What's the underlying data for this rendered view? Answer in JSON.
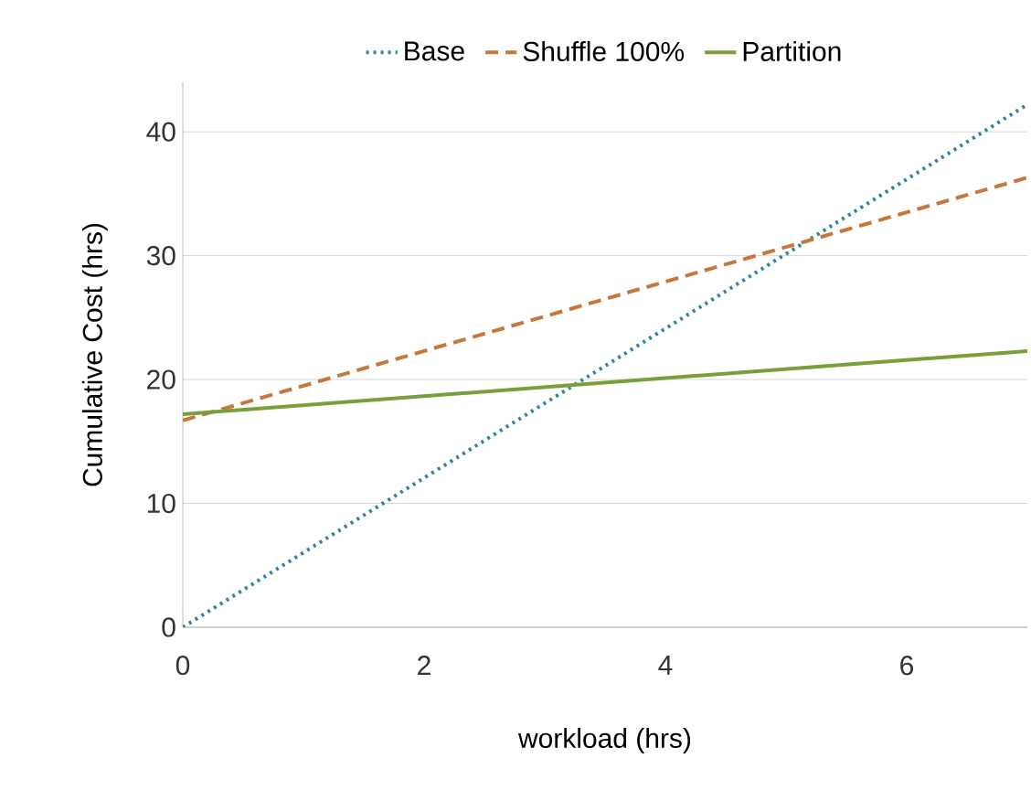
{
  "chart_data": {
    "type": "line",
    "xlabel": "workload (hrs)",
    "ylabel": "Cumulative Cost (hrs)",
    "x": [
      0,
      7
    ],
    "series": [
      {
        "name": "Base",
        "color": "#31859c",
        "values": [
          0,
          42.2
        ],
        "line_style": "dotted"
      },
      {
        "name": "Shuffle 100%",
        "color": "#c8773c",
        "values": [
          16.7,
          36.3
        ],
        "line_style": "dashed"
      },
      {
        "name": "Partition",
        "color": "#77a03c",
        "values": [
          17.2,
          22.3
        ],
        "line_style": "solid"
      }
    ],
    "xlim": [
      0,
      7
    ],
    "ylim": [
      0,
      44
    ],
    "xticks": [
      0,
      2,
      4,
      6
    ],
    "yticks": [
      0,
      10,
      20,
      30,
      40
    ],
    "grid": "y",
    "legend": "top",
    "marker": "none"
  }
}
